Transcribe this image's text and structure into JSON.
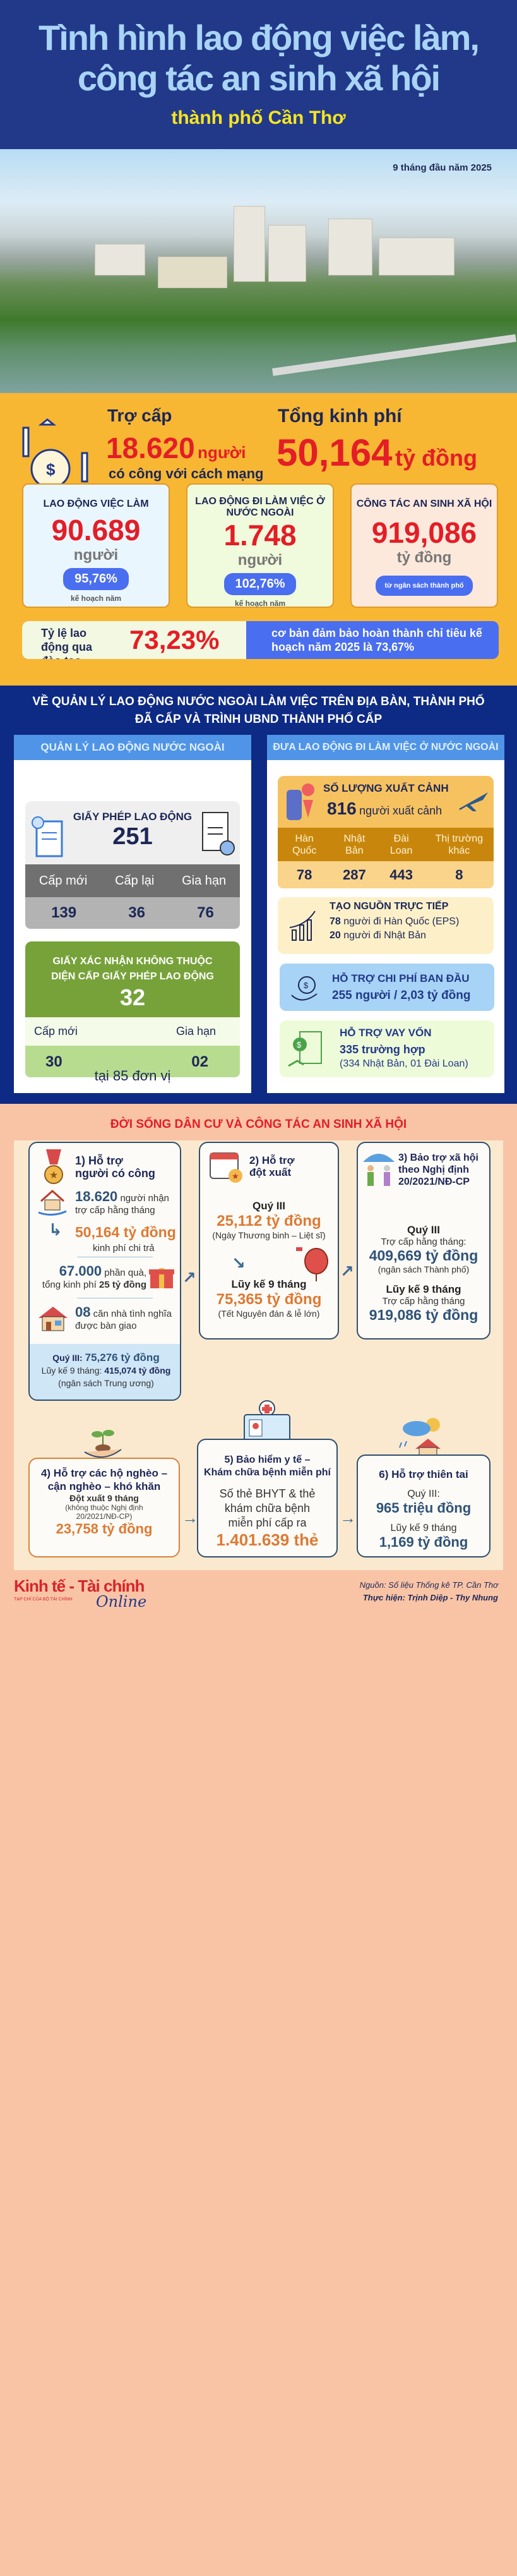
{
  "header": {
    "title_line1": "Tình hình lao động việc làm,",
    "title_line2": "công tác an sinh xã hội",
    "subtitle": "thành phố Cần Thơ",
    "period": "9 tháng đầu năm 2025"
  },
  "summary": {
    "subsidy_label": "Trợ cấp",
    "subsidy_value": "18.620",
    "subsidy_unit": "người",
    "subsidy_desc": "có công với cách mạng",
    "total_label": "Tổng kinh phí",
    "total_value": "50,164",
    "total_unit": "tỷ đồng",
    "cards": [
      {
        "title": "LAO ĐỘNG VIỆC LÀM",
        "value": "90.689",
        "unit": "người",
        "pill": "95,76%",
        "note": "kế hoạch năm",
        "bg": "#eaf6fd"
      },
      {
        "title": "LAO ĐỘNG ĐI LÀM VIỆC Ở NƯỚC NGOÀI",
        "value": "1.748",
        "unit": "người",
        "pill": "102,76%",
        "note": "kế hoạch năm",
        "bg": "#f0fadc"
      },
      {
        "title": "CÔNG TÁC AN SINH XÃ HỘI",
        "value": "919,086",
        "unit": "tỷ đồng",
        "pill": "từ ngân sách thành phố",
        "bg": "#fde9dc"
      }
    ],
    "training_label": "Tỷ lệ lao động qua đào tạo",
    "training_value": "73,23%",
    "training_desc": "cơ bản đảm bảo hoàn thành chỉ tiêu kế hoạch năm 2025 là 73,67%"
  },
  "foreign": {
    "heading_line1": "VỀ QUẢN LÝ LAO ĐỘNG NƯỚC NGOÀI LÀM VIỆC TRÊN ĐỊA BÀN, THÀNH PHỐ",
    "heading_line2": "ĐÃ CẤP VÀ TRÌNH UBND THÀNH PHỐ CẤP",
    "left": {
      "header": "QUẢN LÝ LAO ĐỘNG NƯỚC NGOÀI",
      "permit_title": "GIẤY PHÉP LAO ĐỘNG",
      "permit_value": "251",
      "permit_cols": [
        "Cấp mới",
        "Cấp lại",
        "Gia hạn"
      ],
      "permit_vals": [
        "139",
        "36",
        "76"
      ],
      "confirm_title": "GIẤY XÁC NHẬN KHÔNG THUỘC DIỆN CẤP GIẤY PHÉP LAO ĐỘNG",
      "confirm_value": "32",
      "confirm_cols": [
        "Cấp mới",
        "Gia hạn"
      ],
      "confirm_vals": [
        "30",
        "02"
      ],
      "units_note": "tại 85 đơn vị"
    },
    "right": {
      "header": "ĐƯA LAO ĐỘNG ĐI LÀM VIỆC Ở NƯỚC NGOÀI",
      "exit_title": "SỐ LƯỢNG XUẤT CẢNH",
      "exit_value": "816",
      "exit_unit": "người xuất cảnh",
      "markets": [
        "Hàn Quốc",
        "Nhật Bản",
        "Đài Loan",
        "Thị trường khác"
      ],
      "market_vals": [
        "78",
        "287",
        "443",
        "8"
      ],
      "source_title": "TẠO NGUỒN TRỰC TIẾP",
      "source_v1": "78",
      "source_t1": "người đi Hàn Quốc (EPS)",
      "source_v2": "20",
      "source_t2": "người đi Nhật Bản",
      "cost_title": "HỖ TRỢ CHI PHÍ BAN ĐẦU",
      "cost_value": "255 người / 2,03 tỷ đồng",
      "loan_title": "HỖ TRỢ VAY VỐN",
      "loan_value": "335 trường hợp",
      "loan_detail": "(334 Nhật Bản, 01 Đài Loan)"
    }
  },
  "social": {
    "heading": "ĐỜI SỐNG DÂN CƯ VÀ CÔNG TÁC AN SINH XÃ HỘI",
    "b1": {
      "title1": "1) Hỗ trợ",
      "title2": "người có công",
      "v1": "18.620",
      "t1a": "người nhận",
      "t1b": "trợ cấp hằng tháng",
      "v2": "50,164 tỷ đồng",
      "t2": "kinh phí chi trả",
      "v3": "67.000",
      "t3a": "phần quà,",
      "t3b": "tổng kinh phí",
      "v3b": "25 tỷ đồng",
      "v4": "08",
      "t4a": "căn nhà tình nghĩa",
      "t4b": "được bàn giao",
      "q_label": "Quý III:",
      "q_value": "75,276 tỷ đồng",
      "acc_label": "Lũy kế 9 tháng:",
      "acc_value": "415,074 tỷ đồng",
      "acc_note": "(ngân sách Trung ương)"
    },
    "b2": {
      "title1": "2) Hỗ trợ",
      "title2": "đột xuất",
      "q_label": "Quý III",
      "q_value": "25,112 tỷ đồng",
      "q_note": "(Ngày Thương binh – Liệt sĩ)",
      "acc_label": "Lũy kế 9 tháng",
      "acc_value": "75,365 tỷ đồng",
      "acc_note": "(Tết Nguyên đán & lễ lớn)"
    },
    "b3": {
      "title1": "3) Bảo trợ xã hội",
      "title2": "theo Nghị định",
      "title3": "20/2021/NĐ-CP",
      "q_label": "Quý III",
      "q_text": "Trợ cấp hằng tháng:",
      "q_value": "409,669 tỷ đồng",
      "q_note": "(ngân sách Thành phố)",
      "acc_label": "Lũy kế 9 tháng",
      "acc_text": "Trợ cấp hằng tháng",
      "acc_value": "919,086 tỷ đồng"
    },
    "b4": {
      "title1": "4) Hỗ trợ các hộ nghèo –",
      "title2": "cận nghèo – khó khăn",
      "sub": "Đột xuất 9 tháng",
      "note1": "(không thuộc Nghị định",
      "note2": "20/2021/NĐ-CP)",
      "value": "23,758 tỷ đồng"
    },
    "b5": {
      "title1": "5) Bảo hiểm y tế –",
      "title2": "Khám chữa bệnh miễn phí",
      "t1": "Số thẻ BHYT & thẻ",
      "t2": "khám chữa bệnh",
      "t3": "miễn phí cấp ra",
      "value": "1.401.639 thẻ"
    },
    "b6": {
      "title": "6) Hỗ trợ thiên tai",
      "q_label": "Quý III:",
      "q_value": "965 triệu đồng",
      "acc_label": "Lũy kế 9 tháng",
      "acc_value": "1,169 tỷ đồng"
    }
  },
  "footer": {
    "logo_text": "Kinh tế - Tài chính",
    "logo_sub": "TẠP CHÍ CỦA BỘ TÀI CHÍNH",
    "logo_online": "Online",
    "source": "Nguồn: Số liệu Thống kê TP. Cần Thơ",
    "credit": "Thực hiện: Trịnh Diệp - Thy Nhung"
  },
  "colors": {
    "header_bg": "#22398a",
    "yellow_bg": "#f7b733",
    "navy_bg": "#0d2a85",
    "peach_bg": "#f9c4a6",
    "accent_red": "#e41d26",
    "accent_blue": "#4a6ef0"
  }
}
